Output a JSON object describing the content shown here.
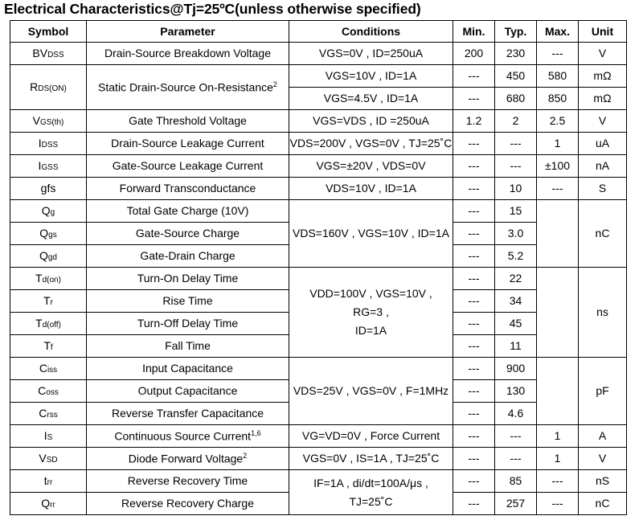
{
  "title": "Electrical Characteristics@Tj=25ºC(unless otherwise specified)",
  "headers": {
    "symbol": "Symbol",
    "parameter": "Parameter",
    "conditions": "Conditions",
    "min": "Min.",
    "typ": "Typ.",
    "max": "Max.",
    "unit": "Unit"
  },
  "cells": {
    "bvdss": {
      "sym": "BV",
      "sub": "DSS",
      "param": "Drain-Source Breakdown Voltage",
      "cond": "VGS=0V , ID=250uA",
      "min": "200",
      "typ": "230",
      "max": "---",
      "unit": "V"
    },
    "rdson": {
      "sym": "R",
      "sub": "DS(ON)",
      "param": "Static Drain-Source On-Resistance",
      "sup": "2",
      "cond1": "VGS=10V , ID=1A",
      "min1": "---",
      "typ1": "450",
      "max1": "580",
      "unit1": "mΩ",
      "cond2": "VGS=4.5V , ID=1A",
      "min2": "---",
      "typ2": "680",
      "max2": "850",
      "unit2": "mΩ"
    },
    "vgsth": {
      "sym": "V",
      "sub": "GS(th)",
      "param": "Gate Threshold Voltage",
      "cond": "VGS=VDS , ID =250uA",
      "min": "1.2",
      "typ": "2",
      "max": "2.5",
      "unit": "V"
    },
    "idss": {
      "sym": "I",
      "sub": "DSS",
      "param": "Drain-Source Leakage Current",
      "cond": "VDS=200V , VGS=0V , TJ=25˚C",
      "min": "---",
      "typ": "---",
      "max": "1",
      "unit": "uA"
    },
    "igss": {
      "sym": "I",
      "sub": "GSS",
      "param": "Gate-Source Leakage Current",
      "cond": "VGS=±20V , VDS=0V",
      "min": "---",
      "typ": "---",
      "max": "±100",
      "unit": "nA"
    },
    "gfs": {
      "sym": "gfs",
      "param": "Forward Transconductance",
      "cond": "VDS=10V , ID=1A",
      "min": "---",
      "typ": "10",
      "max": "---",
      "unit": "S"
    },
    "qg": {
      "sym": "Q",
      "sub": "g",
      "param": "Total Gate Charge (10V)",
      "min": "---",
      "typ": "15"
    },
    "qgs": {
      "sym": "Q",
      "sub": "gs",
      "param": "Gate-Source Charge",
      "min": "---",
      "typ": "3.0"
    },
    "qgd": {
      "sym": "Q",
      "sub": "gd",
      "param": "Gate-Drain Charge",
      "min": "---",
      "typ": "5.2"
    },
    "q_cond": "VDS=160V , VGS=10V , ID=1A",
    "q_unit": "nC",
    "tdon": {
      "sym": "T",
      "sub": "d(on)",
      "param": "Turn-On Delay Time",
      "min": "---",
      "typ": "22"
    },
    "tr": {
      "sym": "T",
      "sub": "r",
      "param": "Rise Time",
      "min": "---",
      "typ": "34"
    },
    "tdoff": {
      "sym": "T",
      "sub": "d(off)",
      "param": "Turn-Off Delay Time",
      "min": "---",
      "typ": "45"
    },
    "tf": {
      "sym": "T",
      "sub": "f",
      "param": "Fall Time",
      "min": "---",
      "typ": "11"
    },
    "t_cond1": "VDD=100V , VGS=10V ,",
    "t_cond2": "RG=3   ,",
    "t_cond3": "ID=1A",
    "t_unit": "ns",
    "ciss": {
      "sym": "C",
      "sub": "iss",
      "param": "Input Capacitance",
      "min": "---",
      "typ": "900"
    },
    "coss": {
      "sym": "C",
      "sub": "oss",
      "param": "Output Capacitance",
      "min": "---",
      "typ": "130"
    },
    "crss": {
      "sym": "C",
      "sub": "rss",
      "param": "Reverse Transfer Capacitance",
      "min": "---",
      "typ": "4.6"
    },
    "c_cond": "VDS=25V , VGS=0V , F=1MHz",
    "c_unit": "pF",
    "is": {
      "sym": "I",
      "sub": "S",
      "param": "Continuous Source Current",
      "sup": "1,6",
      "cond": "VG=VD=0V , Force Current",
      "min": "---",
      "typ": "---",
      "max": "1",
      "unit": "A"
    },
    "vsd": {
      "sym": "V",
      "sub": "SD",
      "param": "Diode Forward Voltage",
      "sup": "2",
      "cond": "VGS=0V , IS=1A , TJ=25˚C",
      "min": "---",
      "typ": "---",
      "max": "1",
      "unit": "V"
    },
    "trr": {
      "sym": "t",
      "sub": "rr",
      "param": "Reverse Recovery Time",
      "min": "---",
      "typ": "85",
      "max": "---",
      "unit": "nS"
    },
    "qrr": {
      "sym": "Q",
      "sub": "rr",
      "param": "Reverse Recovery Charge",
      "min": "---",
      "typ": "257",
      "max": "---",
      "unit": "nC"
    },
    "rr_cond1": "IF=1A , di/dt=100A/μs ,",
    "rr_cond2": "TJ=25˚C"
  }
}
